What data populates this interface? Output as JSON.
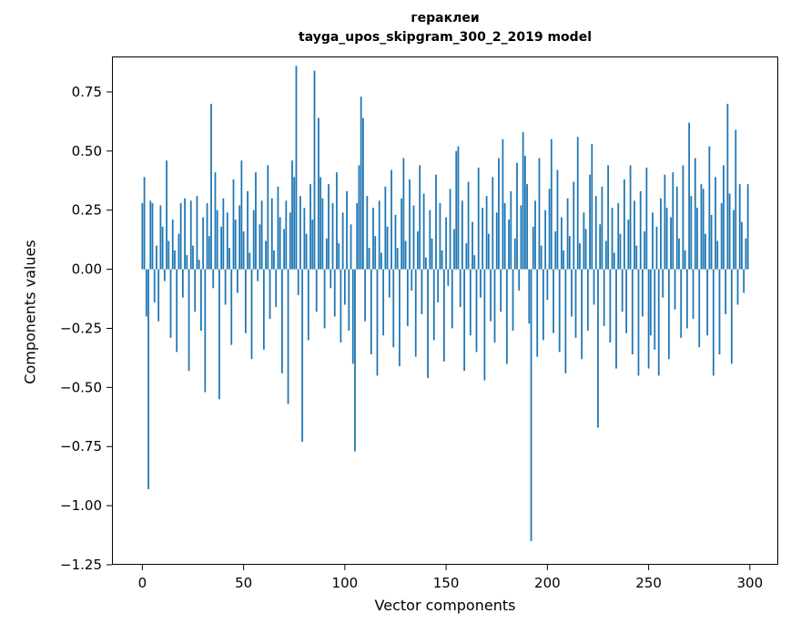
{
  "title": {
    "line1": "гераклеи",
    "line2": "tayga_upos_skipgram_300_2_2019 model"
  },
  "chart_data": {
    "type": "bar",
    "title": "гераклеи",
    "subtitle": "tayga_upos_skipgram_300_2_2019 model",
    "xlabel": "Vector components",
    "ylabel": "Components values",
    "bar_color": "#1f77b4",
    "grid": false,
    "legend": "none",
    "xlim": [
      -15,
      314
    ],
    "ylim": [
      -1.25,
      0.9
    ],
    "xticks": [
      0,
      50,
      100,
      150,
      200,
      250,
      300
    ],
    "yticks": [
      0.75,
      0.5,
      0.25,
      0.0,
      -0.25,
      -0.5,
      -0.75,
      -1.0,
      -1.25
    ],
    "x_start": 0,
    "values": [
      0.28,
      0.39,
      -0.2,
      -0.93,
      0.29,
      0.28,
      -0.14,
      0.1,
      -0.22,
      0.27,
      0.18,
      -0.05,
      0.46,
      0.12,
      -0.29,
      0.21,
      0.08,
      -0.35,
      0.15,
      0.28,
      -0.12,
      0.3,
      0.06,
      -0.43,
      0.29,
      0.1,
      -0.18,
      0.31,
      0.04,
      -0.26,
      0.22,
      -0.52,
      0.28,
      0.14,
      0.7,
      -0.08,
      0.41,
      0.25,
      -0.55,
      0.18,
      0.3,
      -0.15,
      0.24,
      0.09,
      -0.32,
      0.38,
      0.21,
      -0.1,
      0.27,
      0.46,
      0.16,
      -0.27,
      0.33,
      0.07,
      -0.38,
      0.25,
      0.41,
      -0.05,
      0.19,
      0.29,
      -0.34,
      0.12,
      0.44,
      -0.21,
      0.3,
      0.08,
      -0.16,
      0.35,
      0.22,
      -0.44,
      0.17,
      0.29,
      -0.57,
      0.24,
      0.46,
      0.39,
      0.86,
      -0.11,
      0.31,
      -0.73,
      0.26,
      0.15,
      -0.3,
      0.36,
      0.21,
      0.84,
      -0.18,
      0.64,
      0.39,
      0.3,
      -0.25,
      0.13,
      0.36,
      -0.08,
      0.28,
      -0.2,
      0.41,
      0.11,
      -0.31,
      0.24,
      -0.15,
      0.33,
      -0.26,
      0.19,
      -0.4,
      -0.77,
      0.28,
      0.44,
      0.73,
      0.64,
      -0.22,
      0.31,
      0.09,
      -0.36,
      0.26,
      0.14,
      -0.45,
      0.29,
      0.07,
      -0.28,
      0.35,
      0.18,
      -0.12,
      0.42,
      -0.33,
      0.23,
      0.09,
      -0.41,
      0.3,
      0.47,
      0.12,
      -0.24,
      0.38,
      -0.09,
      0.27,
      -0.37,
      0.16,
      0.44,
      -0.19,
      0.32,
      0.05,
      -0.46,
      0.25,
      0.13,
      -0.3,
      0.4,
      -0.14,
      0.28,
      0.08,
      -0.39,
      0.22,
      -0.07,
      0.34,
      -0.25,
      0.17,
      0.5,
      0.52,
      -0.16,
      0.29,
      -0.43,
      0.11,
      0.37,
      -0.28,
      0.2,
      0.06,
      -0.35,
      0.43,
      -0.12,
      0.26,
      -0.47,
      0.31,
      0.15,
      -0.22,
      0.39,
      -0.31,
      0.24,
      0.47,
      -0.18,
      0.55,
      0.28,
      -0.4,
      0.21,
      0.33,
      -0.26,
      0.13,
      0.45,
      -0.09,
      0.27,
      0.58,
      0.48,
      0.36,
      -0.23,
      -1.15,
      0.18,
      0.29,
      -0.37,
      0.47,
      0.1,
      -0.3,
      0.25,
      -0.13,
      0.34,
      0.55,
      -0.27,
      0.16,
      0.42,
      -0.35,
      0.22,
      0.08,
      -0.44,
      0.3,
      0.14,
      -0.2,
      0.37,
      -0.29,
      0.56,
      0.11,
      -0.38,
      0.24,
      0.17,
      -0.26,
      0.4,
      0.53,
      -0.15,
      0.31,
      -0.67,
      0.19,
      0.35,
      -0.24,
      0.12,
      0.44,
      -0.31,
      0.26,
      0.07,
      -0.42,
      0.28,
      0.15,
      -0.18,
      0.38,
      -0.27,
      0.21,
      0.44,
      -0.36,
      0.29,
      0.1,
      -0.45,
      0.33,
      -0.2,
      0.16,
      0.43,
      -0.42,
      -0.28,
      0.24,
      -0.34,
      0.18,
      -0.45,
      0.3,
      -0.12,
      0.4,
      0.26,
      -0.38,
      0.22,
      0.41,
      -0.17,
      0.35,
      0.13,
      -0.29,
      0.44,
      0.08,
      -0.25,
      0.62,
      0.31,
      -0.21,
      0.47,
      0.26,
      -0.33,
      0.36,
      0.34,
      0.15,
      -0.28,
      0.52,
      0.23,
      -0.45,
      0.39,
      0.12,
      -0.36,
      0.28,
      0.44,
      -0.19,
      0.7,
      0.32,
      -0.4,
      0.25,
      0.59,
      -0.15,
      0.36,
      0.2,
      -0.1,
      0.13,
      0.36
    ]
  }
}
